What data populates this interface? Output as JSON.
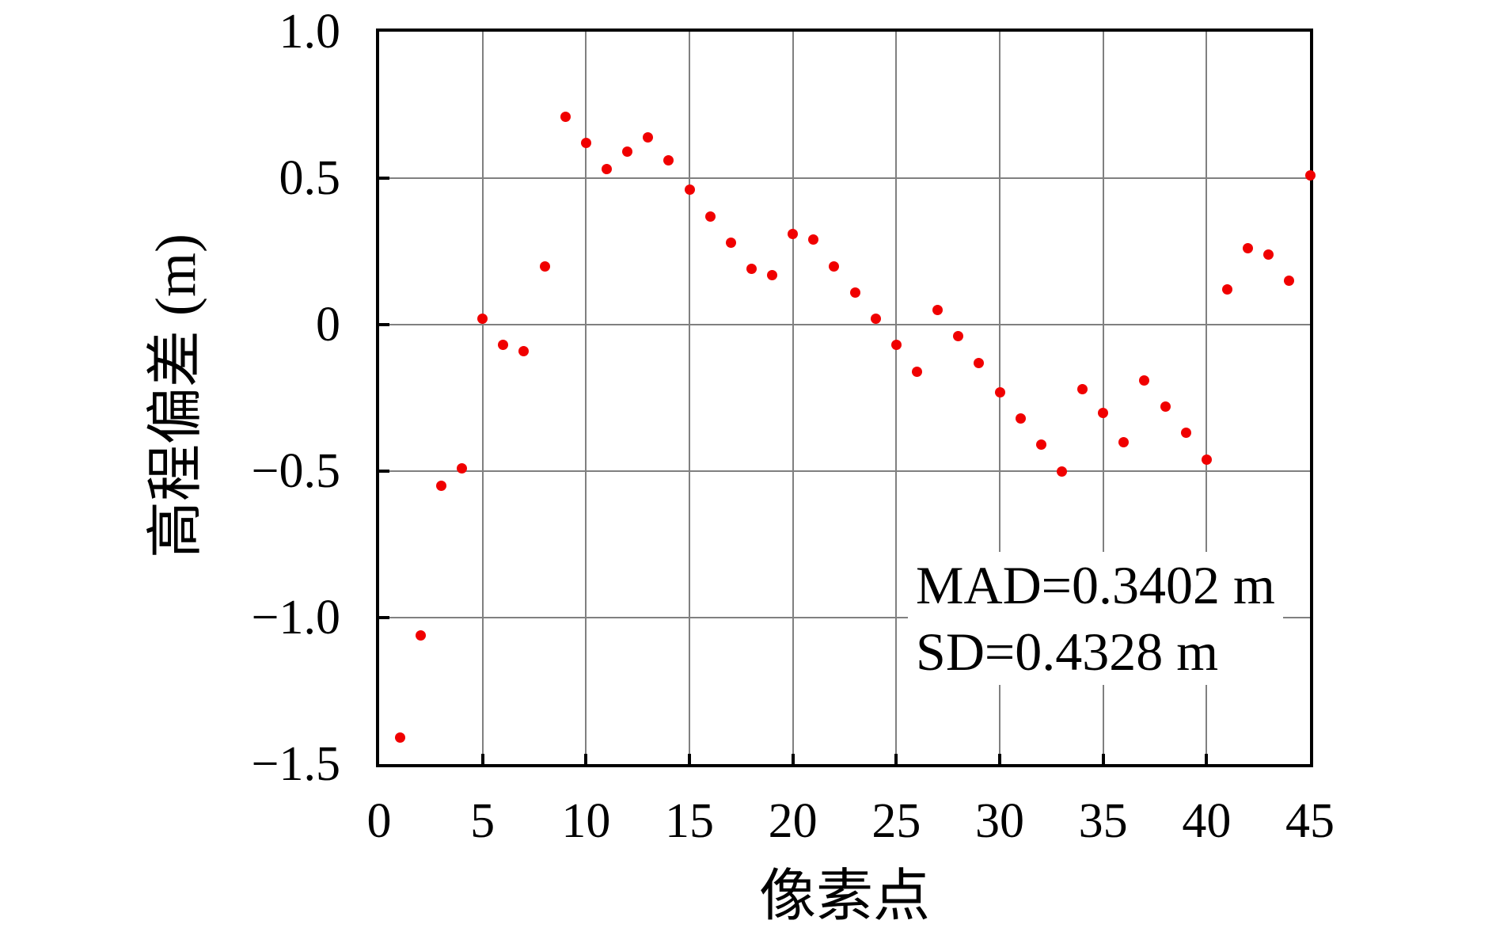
{
  "chart_data": {
    "type": "scatter",
    "title": "",
    "xlabel": "像素点",
    "ylabel": "高程偏差 (m)",
    "xlim": [
      0,
      45
    ],
    "ylim": [
      -1.5,
      1.0
    ],
    "grid": true,
    "grid_color": "#808080",
    "axis_color": "#000000",
    "background_color": "#ffffff",
    "x_ticks": [
      {
        "value": 0,
        "label": "0"
      },
      {
        "value": 5,
        "label": "5"
      },
      {
        "value": 10,
        "label": "10"
      },
      {
        "value": 15,
        "label": "15"
      },
      {
        "value": 20,
        "label": "20"
      },
      {
        "value": 25,
        "label": "25"
      },
      {
        "value": 30,
        "label": "30"
      },
      {
        "value": 35,
        "label": "35"
      },
      {
        "value": 40,
        "label": "40"
      },
      {
        "value": 45,
        "label": "45"
      }
    ],
    "y_ticks": [
      {
        "value": 1.0,
        "label": "1.0"
      },
      {
        "value": 0.5,
        "label": "0.5"
      },
      {
        "value": 0,
        "label": "0"
      },
      {
        "value": -0.5,
        "label": "−0.5"
      },
      {
        "value": -1.0,
        "label": "−1.0"
      },
      {
        "value": -1.5,
        "label": "−1.5"
      }
    ],
    "series": [
      {
        "name": "elevation-deviation-points",
        "marker_color": "#f00000",
        "marker_diameter_px": 13,
        "x": [
          1,
          2,
          3,
          4,
          5,
          6,
          7,
          8,
          9,
          10,
          11,
          12,
          13,
          14,
          15,
          16,
          17,
          18,
          19,
          20,
          21,
          22,
          23,
          24,
          25,
          26,
          27,
          28,
          29,
          30,
          31,
          32,
          33,
          34,
          35,
          36,
          37,
          38,
          39,
          40,
          41,
          42,
          43,
          44,
          45
        ],
        "y": [
          -1.41,
          -1.06,
          -0.55,
          -0.49,
          0.02,
          -0.07,
          -0.09,
          0.2,
          0.71,
          0.62,
          0.53,
          0.59,
          0.64,
          0.56,
          0.46,
          0.37,
          0.28,
          0.19,
          0.17,
          0.31,
          0.29,
          0.2,
          0.11,
          0.02,
          -0.07,
          -0.16,
          0.05,
          -0.04,
          -0.13,
          -0.23,
          -0.32,
          -0.41,
          -0.5,
          -0.22,
          -0.3,
          -0.4,
          -0.19,
          -0.28,
          -0.37,
          -0.46,
          0.12,
          0.26,
          0.24,
          0.15,
          0.51
        ]
      }
    ],
    "annotation": {
      "lines": [
        "MAD=0.3402 m",
        "SD=0.4328 m"
      ]
    }
  }
}
